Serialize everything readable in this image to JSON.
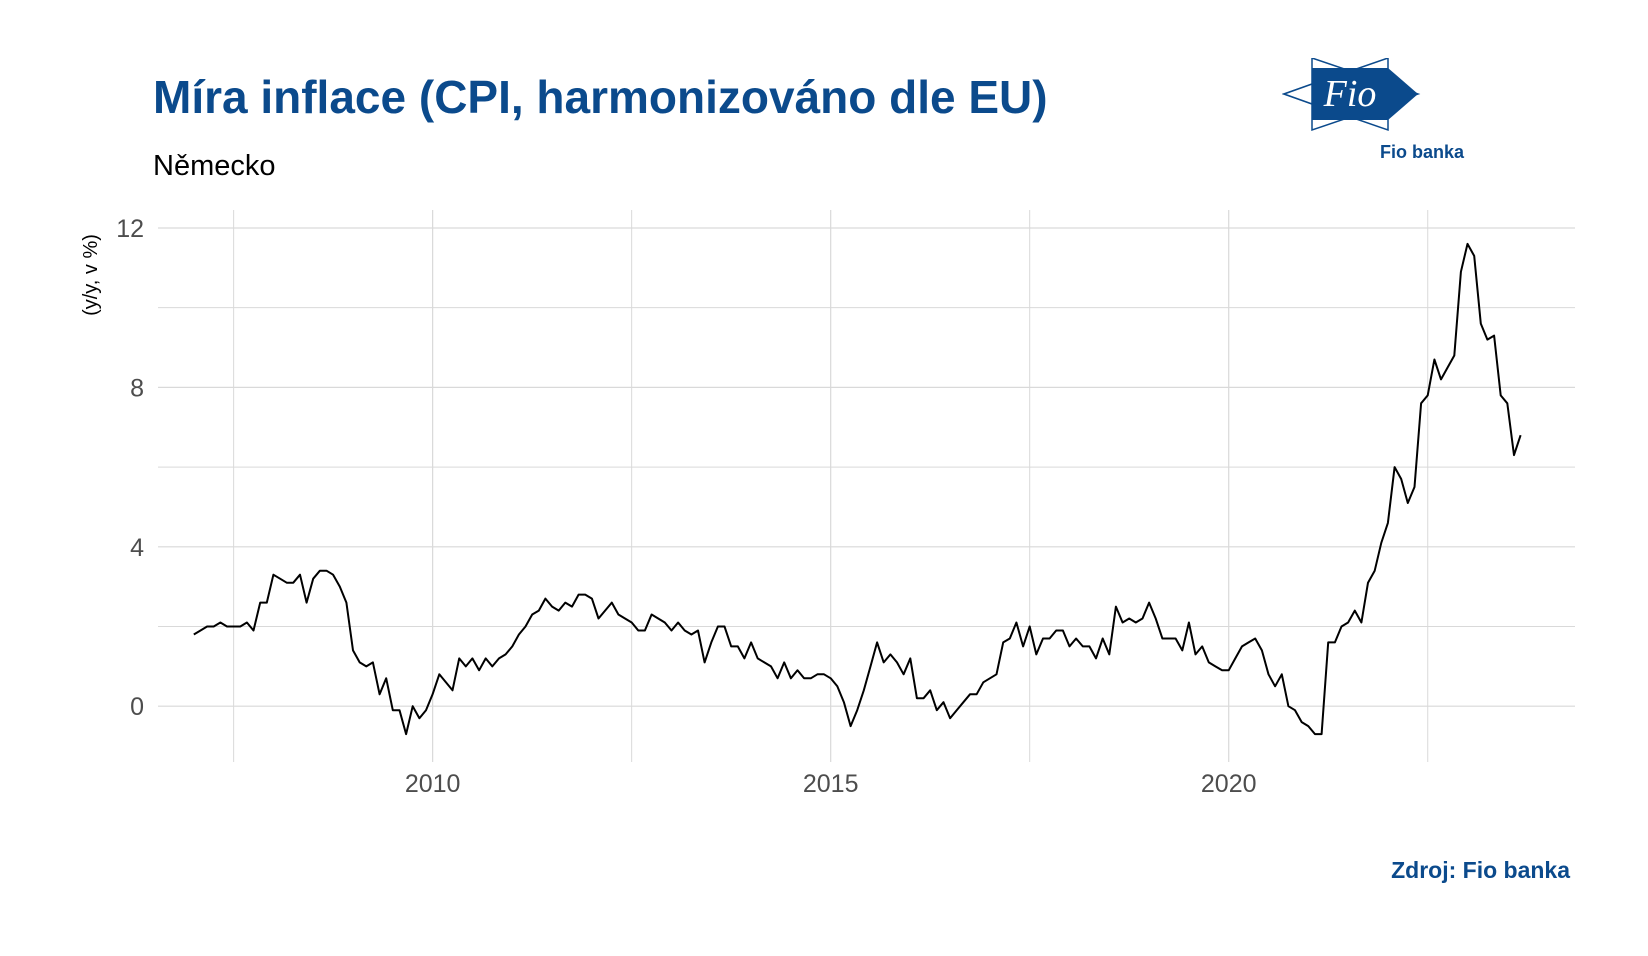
{
  "header": {
    "title": "Míra inflace (CPI, harmonizováno dle EU)",
    "subtitle": "Německo"
  },
  "logo": {
    "mark_text": "Fio",
    "caption": "Fio banka",
    "icon": "fio-logo-icon"
  },
  "footer": {
    "source": "Zdroj: Fio banka"
  },
  "colors": {
    "title": "#0b4a8c",
    "line": "#000000",
    "grid": "#d9d9d9",
    "tick_text": "#4d4d4d"
  },
  "chart_data": {
    "type": "line",
    "title": "Míra inflace (CPI, harmonizováno dle EU)",
    "subtitle": "Německo",
    "xlabel": "",
    "ylabel": "(y/y, v %)",
    "xlim": [
      2006.55,
      2024.35
    ],
    "ylim": [
      -1.4,
      12.2
    ],
    "x_ticks": [
      2010,
      2015,
      2020
    ],
    "y_ticks": [
      0,
      4,
      8,
      12
    ],
    "grid": true,
    "legend": "none",
    "series": [
      {
        "start": "2007-01",
        "frequency": "monthly",
        "values": [
          1.8,
          1.9,
          2.0,
          2.0,
          2.1,
          2.0,
          2.0,
          2.0,
          2.1,
          1.9,
          2.6,
          2.6,
          3.3,
          3.2,
          3.1,
          3.1,
          3.3,
          2.6,
          3.2,
          3.4,
          3.4,
          3.3,
          3.0,
          2.6,
          1.4,
          1.1,
          1.0,
          1.1,
          0.3,
          0.7,
          -0.1,
          -0.1,
          -0.7,
          0.0,
          -0.3,
          -0.1,
          0.3,
          0.8,
          0.6,
          0.4,
          1.2,
          1.0,
          1.2,
          0.9,
          1.2,
          1.0,
          1.2,
          1.3,
          1.5,
          1.8,
          2.0,
          2.3,
          2.4,
          2.7,
          2.5,
          2.4,
          2.6,
          2.5,
          2.8,
          2.8,
          2.7,
          2.2,
          2.4,
          2.6,
          2.3,
          2.2,
          2.1,
          1.9,
          1.9,
          2.3,
          2.2,
          2.1,
          1.9,
          2.1,
          1.9,
          1.8,
          1.9,
          1.1,
          1.6,
          2.0,
          2.0,
          1.5,
          1.5,
          1.2,
          1.6,
          1.2,
          1.1,
          1.0,
          0.7,
          1.1,
          0.7,
          0.9,
          0.7,
          0.7,
          0.8,
          0.8,
          0.7,
          0.5,
          0.1,
          -0.5,
          -0.1,
          0.4,
          1.0,
          1.6,
          1.1,
          1.3,
          1.1,
          0.8,
          1.2,
          0.2,
          0.2,
          0.4,
          -0.1,
          0.1,
          -0.3,
          -0.1,
          0.1,
          0.3,
          0.3,
          0.6,
          0.7,
          0.8,
          1.6,
          1.7,
          2.1,
          1.5,
          2.0,
          1.3,
          1.7,
          1.7,
          1.9,
          1.9,
          1.5,
          1.7,
          1.5,
          1.5,
          1.2,
          1.7,
          1.3,
          2.5,
          2.1,
          2.2,
          2.1,
          2.2,
          2.6,
          2.2,
          1.7,
          1.7,
          1.7,
          1.4,
          2.1,
          1.3,
          1.5,
          1.1,
          1.0,
          0.9,
          0.9,
          1.2,
          1.5,
          1.6,
          1.7,
          1.4,
          0.8,
          0.5,
          0.8,
          0.0,
          -0.1,
          -0.4,
          -0.5,
          -0.7,
          -0.7,
          1.6,
          1.6,
          2.0,
          2.1,
          2.4,
          2.1,
          3.1,
          3.4,
          4.1,
          4.6,
          6.0,
          5.7,
          5.1,
          5.5,
          7.6,
          7.8,
          8.7,
          8.2,
          8.5,
          8.8,
          10.9,
          11.6,
          11.3,
          9.6,
          9.2,
          9.3,
          7.8,
          7.6,
          6.3,
          6.8
        ]
      }
    ]
  }
}
